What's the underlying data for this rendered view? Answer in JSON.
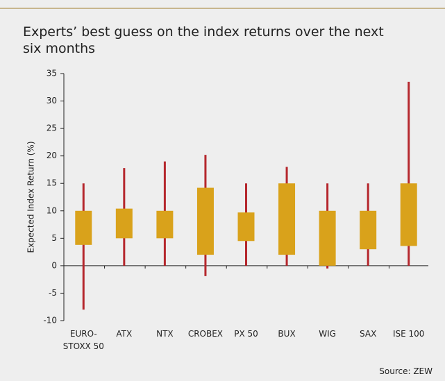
{
  "chart_data": {
    "type": "floating_box",
    "title": "Experts’ best guess on the index returns over the next six months",
    "y_label": "Expected Index Return (%)",
    "source": "Source: ZEW",
    "categories": [
      "EURO-STOXX 50",
      "ATX",
      "NTX",
      "CROBEX",
      "PX 50",
      "BUX",
      "WIG",
      "SAX",
      "ISE 100"
    ],
    "low": [
      -8,
      0,
      0,
      -1.9,
      0,
      0,
      -0.5,
      0,
      0
    ],
    "q1": [
      3.8,
      5,
      5,
      2,
      4.5,
      2,
      0,
      3,
      3.6
    ],
    "q3": [
      10,
      10.4,
      10,
      14.2,
      9.7,
      15,
      10,
      10,
      15
    ],
    "high": [
      15,
      17.8,
      19,
      20.2,
      15,
      18,
      15,
      15,
      33.5
    ],
    "box_color": "#d9a21b",
    "whisker_color": "#b5272d",
    "ylim": [
      -10,
      35
    ],
    "yticks": [
      -10,
      -5,
      0,
      5,
      10,
      15,
      20,
      25,
      30,
      35
    ]
  }
}
